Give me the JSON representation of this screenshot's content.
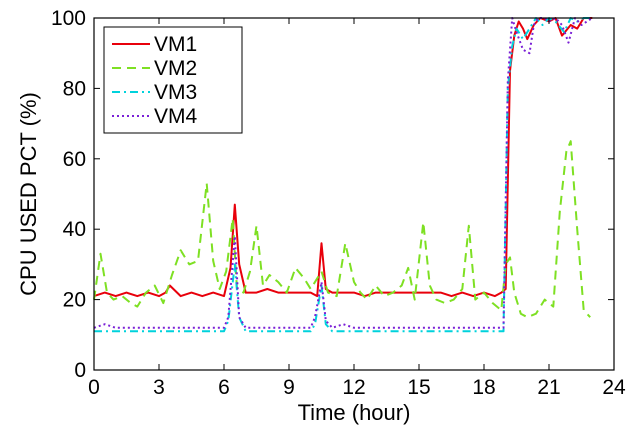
{
  "chart_data": {
    "type": "line",
    "title": "",
    "xlabel": "Time (hour)",
    "ylabel": "CPU USED PCT (%)",
    "xlim": [
      0,
      24
    ],
    "ylim": [
      0,
      100
    ],
    "xticks": [
      0,
      3,
      6,
      9,
      12,
      15,
      18,
      21,
      24
    ],
    "yticks": [
      0,
      20,
      40,
      60,
      80,
      100
    ],
    "grid": false,
    "legend_position": "top-left",
    "series": [
      {
        "name": "VM1",
        "color": "#e8000b",
        "dash": "solid",
        "x": [
          0.0,
          0.5,
          1.0,
          1.5,
          2.0,
          2.5,
          3.0,
          3.3,
          3.5,
          4.0,
          4.5,
          5.0,
          5.5,
          6.0,
          6.3,
          6.5,
          6.7,
          7.0,
          7.5,
          8.0,
          8.5,
          9.0,
          9.5,
          10.0,
          10.3,
          10.5,
          10.7,
          11.0,
          11.5,
          12.0,
          12.5,
          13.0,
          13.5,
          14.0,
          14.5,
          15.0,
          15.5,
          16.0,
          16.5,
          17.0,
          17.5,
          18.0,
          18.5,
          18.8,
          19.0,
          19.2,
          19.4,
          19.6,
          19.8,
          20.0,
          20.3,
          20.6,
          21.0,
          21.3,
          21.6,
          22.0,
          22.3,
          22.6,
          23.0
        ],
        "y": [
          21,
          22,
          21,
          22,
          21,
          22,
          21,
          22,
          24,
          21,
          22,
          21,
          22,
          21,
          29,
          47,
          30,
          22,
          22,
          23,
          22,
          22,
          22,
          22,
          21,
          36,
          23,
          22,
          22,
          22,
          21,
          22,
          22,
          22,
          22,
          22,
          22,
          22,
          21,
          22,
          21,
          22,
          21,
          22,
          23,
          85,
          95,
          99,
          97,
          94,
          98,
          100,
          99,
          100,
          95,
          98,
          97,
          100,
          100
        ]
      },
      {
        "name": "VM2",
        "color": "#7ee023",
        "dash": "9,6",
        "x": [
          0.0,
          0.3,
          0.6,
          0.9,
          1.3,
          1.7,
          2.0,
          2.4,
          2.8,
          3.2,
          3.6,
          4.0,
          4.4,
          4.8,
          5.2,
          5.5,
          5.8,
          6.1,
          6.4,
          6.6,
          6.9,
          7.2,
          7.5,
          7.8,
          8.1,
          8.5,
          8.9,
          9.3,
          9.7,
          10.0,
          10.5,
          10.8,
          11.2,
          11.6,
          12.0,
          12.3,
          12.6,
          13.0,
          13.4,
          13.8,
          14.2,
          14.5,
          14.8,
          15.2,
          15.5,
          15.8,
          16.2,
          16.6,
          17.0,
          17.3,
          17.6,
          18.0,
          18.4,
          18.8,
          19.0,
          19.2,
          19.4,
          19.7,
          20.0,
          20.4,
          20.8,
          21.2,
          21.5,
          21.8,
          22.0,
          22.3,
          22.6,
          22.9
        ],
        "y": [
          20,
          33,
          22,
          20,
          21,
          19,
          18,
          22,
          24,
          19,
          27,
          34,
          30,
          31,
          53,
          31,
          23,
          28,
          43,
          23,
          22,
          28,
          41,
          24,
          27,
          25,
          22,
          29,
          26,
          23,
          28,
          22,
          21,
          36,
          25,
          22,
          20,
          24,
          21,
          22,
          24,
          29,
          20,
          42,
          24,
          20,
          19,
          20,
          23,
          41,
          20,
          22,
          19,
          17,
          30,
          32,
          22,
          16,
          15,
          16,
          20,
          18,
          45,
          62,
          65,
          40,
          17,
          15
        ]
      },
      {
        "name": "VM3",
        "color": "#00d2dc",
        "dash": "8,4,2,4",
        "x": [
          0.0,
          0.5,
          1.0,
          1.5,
          2.0,
          2.5,
          3.0,
          3.5,
          4.0,
          4.5,
          5.0,
          5.5,
          6.0,
          6.2,
          6.5,
          6.7,
          7.0,
          7.5,
          8.0,
          8.5,
          9.0,
          9.5,
          10.0,
          10.2,
          10.5,
          10.7,
          11.0,
          11.5,
          12.0,
          12.5,
          13.0,
          13.5,
          14.0,
          14.5,
          15.0,
          15.5,
          16.0,
          16.5,
          17.0,
          17.5,
          18.0,
          18.5,
          18.9,
          19.1,
          19.3,
          19.5,
          19.8,
          20.1,
          20.4,
          20.7,
          21.0,
          21.3,
          21.7,
          22.0,
          22.3,
          22.6,
          23.0
        ],
        "y": [
          11,
          11,
          11,
          11,
          11,
          11,
          11,
          11,
          11,
          11,
          11,
          11,
          11,
          14,
          30,
          15,
          11,
          11,
          11,
          11,
          11,
          11,
          11,
          13,
          24,
          13,
          11,
          11,
          11,
          11,
          11,
          11,
          11,
          11,
          11,
          11,
          11,
          11,
          11,
          11,
          11,
          11,
          11,
          80,
          92,
          97,
          94,
          97,
          100,
          98,
          100,
          99,
          96,
          100,
          99,
          100,
          100
        ]
      },
      {
        "name": "VM4",
        "color": "#7a1fd6",
        "dash": "2,3",
        "x": [
          0.0,
          0.5,
          1.0,
          1.5,
          2.0,
          2.5,
          3.0,
          3.5,
          4.0,
          4.5,
          5.0,
          5.5,
          6.0,
          6.2,
          6.5,
          6.7,
          7.0,
          7.5,
          8.0,
          8.5,
          9.0,
          9.5,
          10.0,
          10.2,
          10.5,
          10.7,
          11.0,
          11.5,
          12.0,
          12.5,
          13.0,
          13.5,
          14.0,
          14.5,
          15.0,
          15.5,
          16.0,
          16.5,
          17.0,
          17.5,
          18.0,
          18.5,
          18.9,
          19.1,
          19.3,
          19.5,
          19.8,
          20.1,
          20.3,
          20.5,
          20.8,
          21.0,
          21.3,
          21.6,
          21.9,
          22.2,
          22.5,
          23.0
        ],
        "y": [
          12,
          13,
          12,
          12,
          12,
          12,
          12,
          12,
          12,
          12,
          12,
          12,
          12,
          15,
          38,
          15,
          12,
          12,
          12,
          12,
          12,
          12,
          12,
          15,
          25,
          14,
          12,
          13,
          12,
          12,
          12,
          12,
          12,
          12,
          12,
          12,
          12,
          12,
          12,
          12,
          12,
          12,
          12,
          82,
          100,
          96,
          91,
          90,
          98,
          100,
          100,
          99,
          100,
          98,
          93,
          100,
          98,
          100
        ]
      }
    ]
  }
}
